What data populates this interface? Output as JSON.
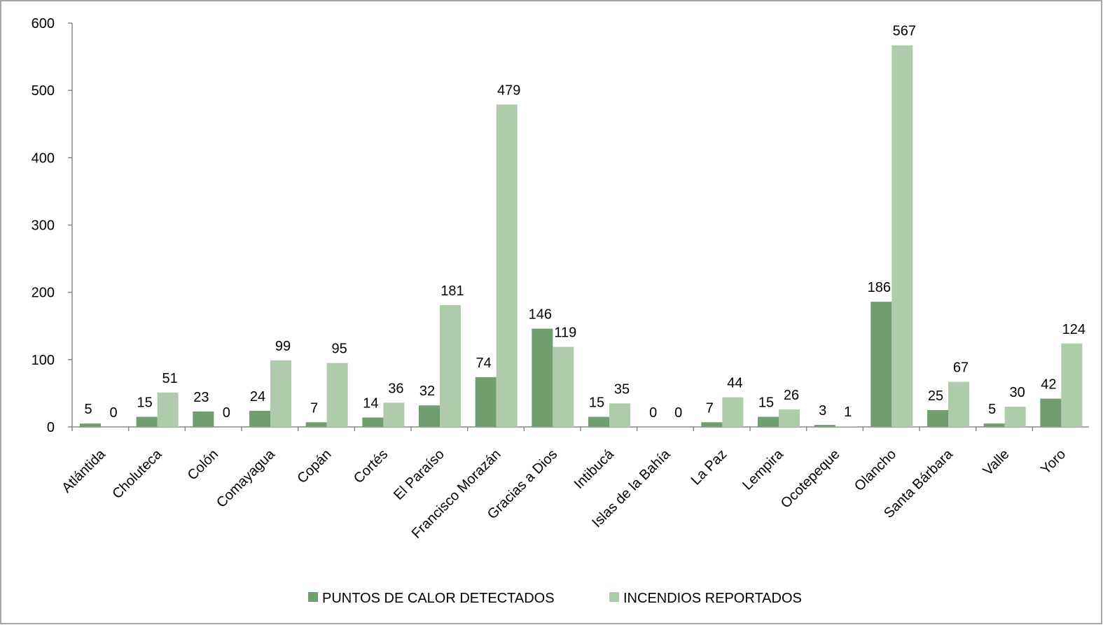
{
  "chart_data": {
    "type": "bar",
    "categories": [
      "Atlántida",
      "Choluteca",
      "Colón",
      "Comayagua",
      "Copán",
      "Cortés",
      "El Paraíso",
      "Francisco Morazán",
      "Gracias a Dios",
      "Intibucá",
      "Islas de la Bahía",
      "La Paz",
      "Lempira",
      "Ocotepeque",
      "Olancho",
      "Santa Bárbara",
      "Valle",
      "Yoro"
    ],
    "series": [
      {
        "name": "PUNTOS DE CALOR DETECTADOS",
        "color": "#6f9f6f",
        "values": [
          5,
          15,
          23,
          24,
          7,
          14,
          32,
          74,
          146,
          15,
          0,
          7,
          15,
          3,
          186,
          25,
          5,
          42
        ]
      },
      {
        "name": "INCENDIOS REPORTADOS",
        "color": "#aecbab",
        "values": [
          0,
          51,
          0,
          99,
          95,
          36,
          181,
          479,
          119,
          35,
          0,
          44,
          26,
          1,
          567,
          67,
          30,
          124
        ]
      }
    ],
    "ylim": [
      0,
      600
    ],
    "yticks": [
      0,
      100,
      200,
      300,
      400,
      500,
      600
    ],
    "grid": false,
    "legend": "bottom"
  }
}
